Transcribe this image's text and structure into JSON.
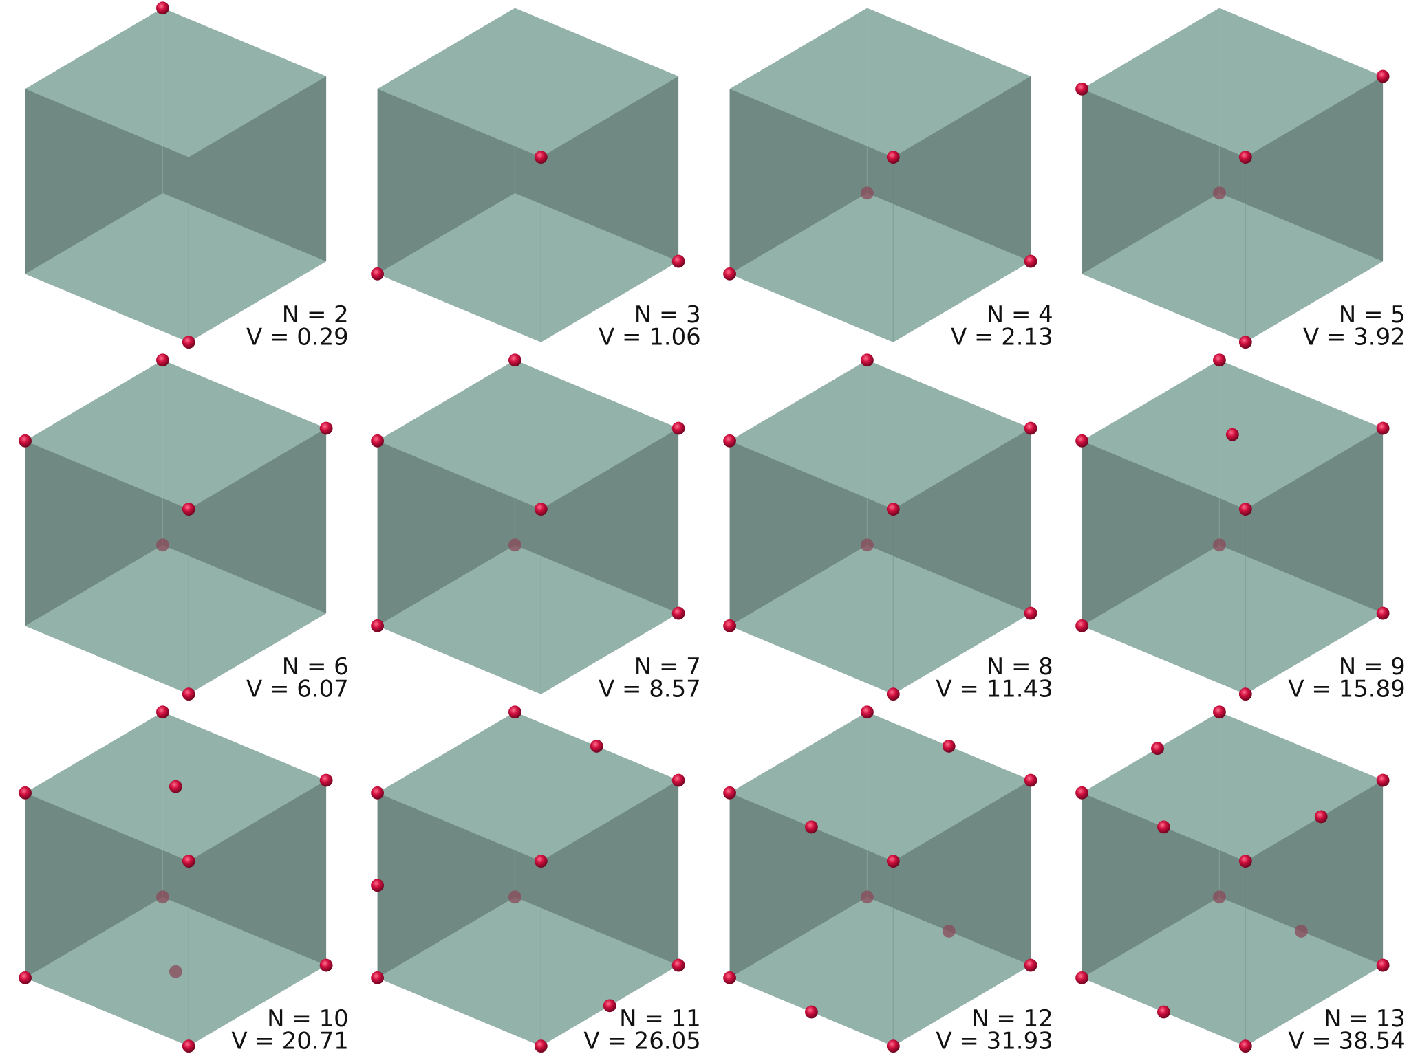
{
  "colors": {
    "face_light": "#93b2a9",
    "face_dark": "#718983",
    "point": "#d0103f",
    "point_hidden": "#8a4a5a",
    "text": "#111111"
  },
  "panels": [
    {
      "n_label": "N = 2",
      "v_label": "V = 0.29",
      "points": [
        [
          0,
          0,
          1
        ],
        [
          1,
          1,
          0
        ]
      ]
    },
    {
      "n_label": "N = 3",
      "v_label": "V = 1.06",
      "points": [
        [
          1,
          1,
          1
        ],
        [
          1,
          0,
          0
        ],
        [
          0,
          1,
          0
        ]
      ]
    },
    {
      "n_label": "N = 4",
      "v_label": "V = 2.13",
      "points": [
        [
          1,
          1,
          1
        ],
        [
          0,
          0,
          0
        ],
        [
          1,
          0,
          0
        ],
        [
          0,
          1,
          0
        ]
      ]
    },
    {
      "n_label": "N = 5",
      "v_label": "V = 3.92",
      "points": [
        [
          1,
          0,
          1
        ],
        [
          0,
          1,
          1
        ],
        [
          1,
          1,
          1
        ],
        [
          0,
          0,
          0
        ],
        [
          1,
          1,
          0
        ]
      ]
    },
    {
      "n_label": "N = 6",
      "v_label": "V = 6.07",
      "points": [
        [
          0,
          0,
          1
        ],
        [
          1,
          0,
          1
        ],
        [
          0,
          1,
          1
        ],
        [
          1,
          1,
          1
        ],
        [
          0,
          0,
          0
        ],
        [
          1,
          1,
          0
        ]
      ]
    },
    {
      "n_label": "N = 7",
      "v_label": "V = 8.57",
      "points": [
        [
          0,
          0,
          1
        ],
        [
          1,
          0,
          1
        ],
        [
          0,
          1,
          1
        ],
        [
          1,
          1,
          1
        ],
        [
          0,
          0,
          0
        ],
        [
          1,
          0,
          0
        ],
        [
          0,
          1,
          0
        ]
      ]
    },
    {
      "n_label": "N = 8",
      "v_label": "V = 11.43",
      "points": [
        [
          0,
          0,
          1
        ],
        [
          1,
          0,
          1
        ],
        [
          0,
          1,
          1
        ],
        [
          1,
          1,
          1
        ],
        [
          0,
          0,
          0
        ],
        [
          1,
          0,
          0
        ],
        [
          0,
          1,
          0
        ],
        [
          1,
          1,
          0
        ]
      ]
    },
    {
      "n_label": "N = 9",
      "v_label": "V = 15.89",
      "points": [
        [
          0,
          0,
          1
        ],
        [
          1,
          0,
          1
        ],
        [
          0,
          1,
          1
        ],
        [
          1,
          1,
          1
        ],
        [
          0,
          0,
          0
        ],
        [
          1,
          0,
          0
        ],
        [
          0,
          1,
          0
        ],
        [
          1,
          1,
          0
        ],
        [
          0.5,
          0.5,
          1
        ]
      ]
    },
    {
      "n_label": "N = 10",
      "v_label": "V = 20.71",
      "points": [
        [
          0,
          0,
          1
        ],
        [
          1,
          0,
          1
        ],
        [
          0,
          1,
          1
        ],
        [
          1,
          1,
          1
        ],
        [
          0,
          0,
          0
        ],
        [
          1,
          0,
          0
        ],
        [
          0,
          1,
          0
        ],
        [
          1,
          1,
          0
        ],
        [
          0.5,
          0.5,
          1
        ],
        [
          0.5,
          0.5,
          0
        ]
      ]
    },
    {
      "n_label": "N = 11",
      "v_label": "V = 26.05",
      "points": [
        [
          0,
          0,
          1
        ],
        [
          1,
          0,
          1
        ],
        [
          0,
          1,
          1
        ],
        [
          1,
          1,
          1
        ],
        [
          0,
          0,
          0
        ],
        [
          1,
          0,
          0
        ],
        [
          0,
          1,
          0
        ],
        [
          1,
          1,
          0
        ],
        [
          0,
          0.5,
          1
        ],
        [
          1,
          0,
          0.5
        ],
        [
          0.5,
          1,
          0
        ]
      ]
    },
    {
      "n_label": "N = 12",
      "v_label": "V = 31.93",
      "points": [
        [
          0,
          0,
          1
        ],
        [
          1,
          0,
          1
        ],
        [
          0,
          1,
          1
        ],
        [
          1,
          1,
          1
        ],
        [
          0,
          0,
          0
        ],
        [
          1,
          0,
          0
        ],
        [
          0,
          1,
          0
        ],
        [
          1,
          1,
          0
        ],
        [
          0,
          0.5,
          1
        ],
        [
          1,
          0.5,
          1
        ],
        [
          0,
          0.5,
          0
        ],
        [
          1,
          0.5,
          0
        ]
      ]
    },
    {
      "n_label": "N = 13",
      "v_label": "V = 38.54",
      "points": [
        [
          0,
          0,
          1
        ],
        [
          1,
          0,
          1
        ],
        [
          0,
          1,
          1
        ],
        [
          1,
          1,
          1
        ],
        [
          0,
          0,
          0
        ],
        [
          1,
          0,
          0
        ],
        [
          0,
          1,
          0
        ],
        [
          1,
          1,
          0
        ],
        [
          0.45,
          0,
          1
        ],
        [
          1,
          0.5,
          1
        ],
        [
          0.45,
          1,
          1
        ],
        [
          0,
          0.5,
          0
        ],
        [
          1,
          0.5,
          0
        ]
      ]
    }
  ]
}
